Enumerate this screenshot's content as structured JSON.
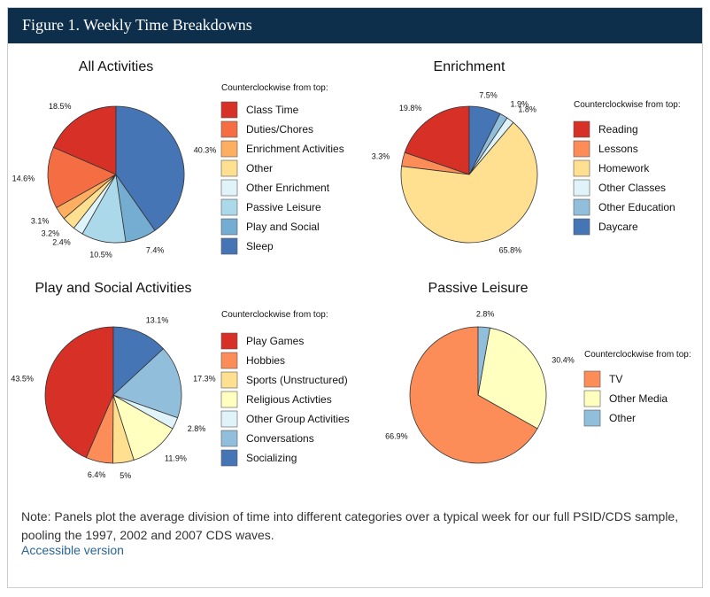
{
  "figure": {
    "title": "Figure 1. Weekly Time Breakdowns"
  },
  "note": "Note: Panels plot the average division of time into different categories over a typical week for our full PSID/CDS sample, pooling the 1997, 2002 and 2007 CDS waves.",
  "link": {
    "label": "Accessible version"
  },
  "chart_data": [
    {
      "type": "pie",
      "title": "All Activities",
      "legend_title": "Counterclockwise from top:",
      "legend_placement": "right",
      "direction": "counterclockwise from top",
      "series": [
        {
          "name": "Class Time",
          "value": 18.5,
          "label": "18.5%",
          "color": "#d73027"
        },
        {
          "name": "Duties/Chores",
          "value": 14.6,
          "label": "14.6%",
          "color": "#f46d43"
        },
        {
          "name": "Enrichment Activities",
          "value": 3.1,
          "label": "3.1%",
          "color": "#fdae61"
        },
        {
          "name": "Other",
          "value": 3.2,
          "label": "3.2%",
          "color": "#fee090"
        },
        {
          "name": "Other Enrichment",
          "value": 2.4,
          "label": "2.4%",
          "color": "#e0f3f8"
        },
        {
          "name": "Passive Leisure",
          "value": 10.5,
          "label": "10.5%",
          "color": "#abd9e9"
        },
        {
          "name": "Play and Social",
          "value": 7.4,
          "label": "7.4%",
          "color": "#74add1"
        },
        {
          "name": "Sleep",
          "value": 40.3,
          "label": "40.3%",
          "color": "#4575b4"
        }
      ]
    },
    {
      "type": "pie",
      "title": "Enrichment",
      "legend_title": "Counterclockwise from top:",
      "legend_placement": "right",
      "direction": "counterclockwise from top",
      "series": [
        {
          "name": "Reading",
          "value": 19.8,
          "label": "19.8%",
          "color": "#d73027"
        },
        {
          "name": "Lessons",
          "value": 3.3,
          "label": "3.3%",
          "color": "#fc8d59"
        },
        {
          "name": "Homework",
          "value": 65.8,
          "label": "65.8%",
          "color": "#fee090"
        },
        {
          "name": "Other Classes",
          "value": 1.8,
          "label": "1.8%",
          "color": "#e0f3f8"
        },
        {
          "name": "Other Education",
          "value": 1.9,
          "label": "1.9%",
          "color": "#91bfdb"
        },
        {
          "name": "Daycare",
          "value": 7.5,
          "label": "7.5%",
          "color": "#4575b4"
        }
      ]
    },
    {
      "type": "pie",
      "title": "Play and Social Activities",
      "legend_title": "Counterclockwise from top:",
      "legend_placement": "right",
      "direction": "counterclockwise from top",
      "series": [
        {
          "name": "Play Games",
          "value": 43.5,
          "label": "43.5%",
          "color": "#d73027"
        },
        {
          "name": "Hobbies",
          "value": 6.4,
          "label": "6.4%",
          "color": "#fc8d59"
        },
        {
          "name": "Sports (Unstructured)",
          "value": 5,
          "label": "5%",
          "color": "#fee090"
        },
        {
          "name": "Religious Activties",
          "value": 11.9,
          "label": "11.9%",
          "color": "#ffffbf"
        },
        {
          "name": "Other Group Activities",
          "value": 2.8,
          "label": "2.8%",
          "color": "#e0f3f8"
        },
        {
          "name": "Conversations",
          "value": 17.3,
          "label": "17.3%",
          "color": "#91bfdb"
        },
        {
          "name": "Socializing",
          "value": 13.1,
          "label": "13.1%",
          "color": "#4575b4"
        }
      ]
    },
    {
      "type": "pie",
      "title": "Passive Leisure",
      "legend_title": "Counterclockwise from top:",
      "legend_placement": "right",
      "direction": "counterclockwise from top",
      "series": [
        {
          "name": "TV",
          "value": 66.9,
          "label": "66.9%",
          "color": "#fc8d59"
        },
        {
          "name": "Other Media",
          "value": 30.4,
          "label": "30.4%",
          "color": "#ffffbf"
        },
        {
          "name": "Other",
          "value": 2.8,
          "label": "2.8%",
          "color": "#91bfdb"
        }
      ]
    }
  ]
}
